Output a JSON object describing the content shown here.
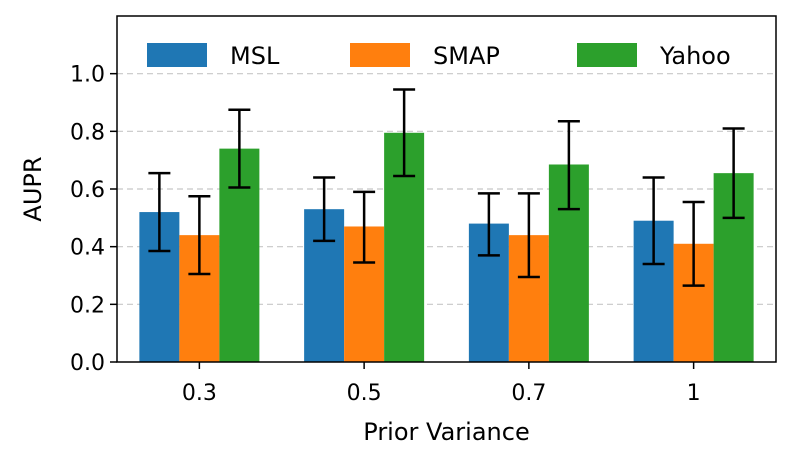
{
  "chart_data": {
    "type": "bar",
    "xlabel": "Prior Variance",
    "ylabel": "AUPR",
    "ylim": [
      0,
      1.2
    ],
    "yticks": [
      "0.0",
      "0.2",
      "0.4",
      "0.6",
      "0.8",
      "1.0"
    ],
    "grid": "horizontal dashed",
    "legend": "top",
    "categories": [
      "0.3",
      "0.5",
      "0.7",
      "1"
    ],
    "series": [
      {
        "name": "MSL",
        "color": "#1f77b4",
        "values": [
          0.52,
          0.53,
          0.48,
          0.49
        ],
        "err_low": [
          0.385,
          0.42,
          0.37,
          0.34
        ],
        "err_high": [
          0.655,
          0.64,
          0.585,
          0.64
        ]
      },
      {
        "name": "SMAP",
        "color": "#ff7f0e",
        "values": [
          0.44,
          0.47,
          0.44,
          0.41
        ],
        "err_low": [
          0.305,
          0.345,
          0.295,
          0.265
        ],
        "err_high": [
          0.575,
          0.59,
          0.585,
          0.555
        ]
      },
      {
        "name": "Yahoo",
        "color": "#2ca02c",
        "values": [
          0.74,
          0.795,
          0.685,
          0.655
        ],
        "err_low": [
          0.605,
          0.645,
          0.53,
          0.5
        ],
        "err_high": [
          0.875,
          0.945,
          0.835,
          0.81
        ]
      }
    ]
  }
}
